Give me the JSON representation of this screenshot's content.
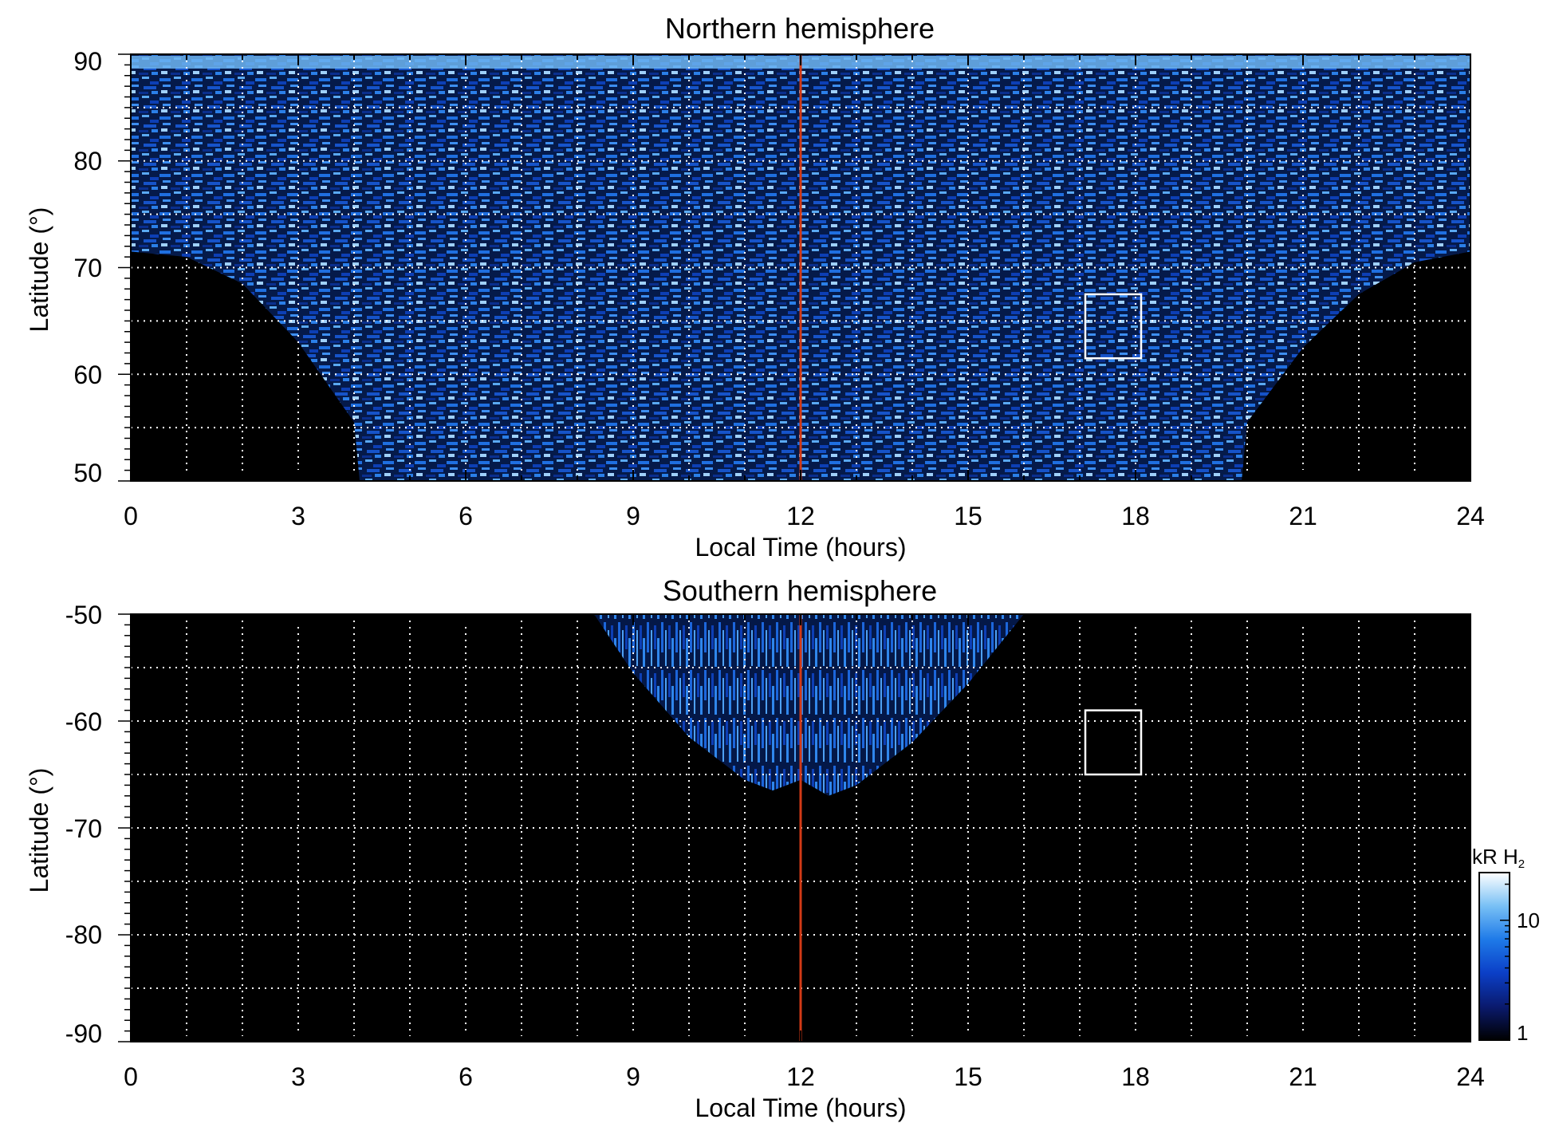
{
  "chart_data": [
    {
      "type": "heatmap",
      "title": "Northern hemisphere",
      "xlabel": "Local Time (hours)",
      "ylabel": "Latitude (°)",
      "xlim": [
        0,
        24
      ],
      "ylim": [
        50,
        90
      ],
      "xticks": [
        "0",
        "3",
        "6",
        "9",
        "12",
        "15",
        "18",
        "21",
        "24"
      ],
      "yticks": [
        "50",
        "60",
        "70",
        "80",
        "90"
      ],
      "grid": true,
      "noon_line": {
        "x": 12,
        "color": "#d33a16"
      },
      "box": {
        "x0": 17.1,
        "x1": 18.1,
        "y0": 61.5,
        "y1": 67.5
      },
      "coverage": {
        "description_units": "lowest covered latitude per local time",
        "lt": [
          0,
          1,
          2,
          3,
          4,
          4.1,
          6,
          9,
          12,
          15,
          18,
          19.9,
          20,
          21,
          22,
          23,
          24
        ],
        "lat_min": [
          71.5,
          71,
          68.5,
          63,
          55.5,
          50,
          50,
          50,
          50,
          50,
          50,
          50,
          55.5,
          62.5,
          67.5,
          70.5,
          71.5
        ]
      }
    },
    {
      "type": "heatmap",
      "title": "Southern hemisphere",
      "xlabel": "Local Time (hours)",
      "ylabel": "Latitude (°)",
      "xlim": [
        0,
        24
      ],
      "ylim": [
        -90,
        -50
      ],
      "xticks": [
        "0",
        "3",
        "6",
        "9",
        "12",
        "15",
        "18",
        "21",
        "24"
      ],
      "yticks": [
        "-90",
        "-80",
        "-70",
        "-60",
        "-50"
      ],
      "grid": true,
      "noon_line": {
        "x": 12,
        "color": "#d33a16"
      },
      "box": {
        "x0": 17.1,
        "x1": 18.1,
        "y0": -65,
        "y1": -59
      },
      "coverage": {
        "lt": [
          8.3,
          9,
          10,
          11,
          11.5,
          12,
          12.5,
          13,
          14,
          15,
          16
        ],
        "lat_max_equatorward": -50,
        "lat_min": [
          -50,
          -55.5,
          -61.5,
          -65.5,
          -66.5,
          -65.5,
          -67,
          -66,
          -62,
          -56.5,
          -50
        ]
      }
    }
  ],
  "colorbar": {
    "label": "kR H",
    "label_sub": "2",
    "scale": "log",
    "range": [
      1,
      25
    ],
    "ticks": [
      "1",
      "10"
    ],
    "colors": [
      "#000000",
      "#0a1a6e",
      "#0b3fc7",
      "#1e7ae8",
      "#78c0f5",
      "#ffffff"
    ]
  }
}
